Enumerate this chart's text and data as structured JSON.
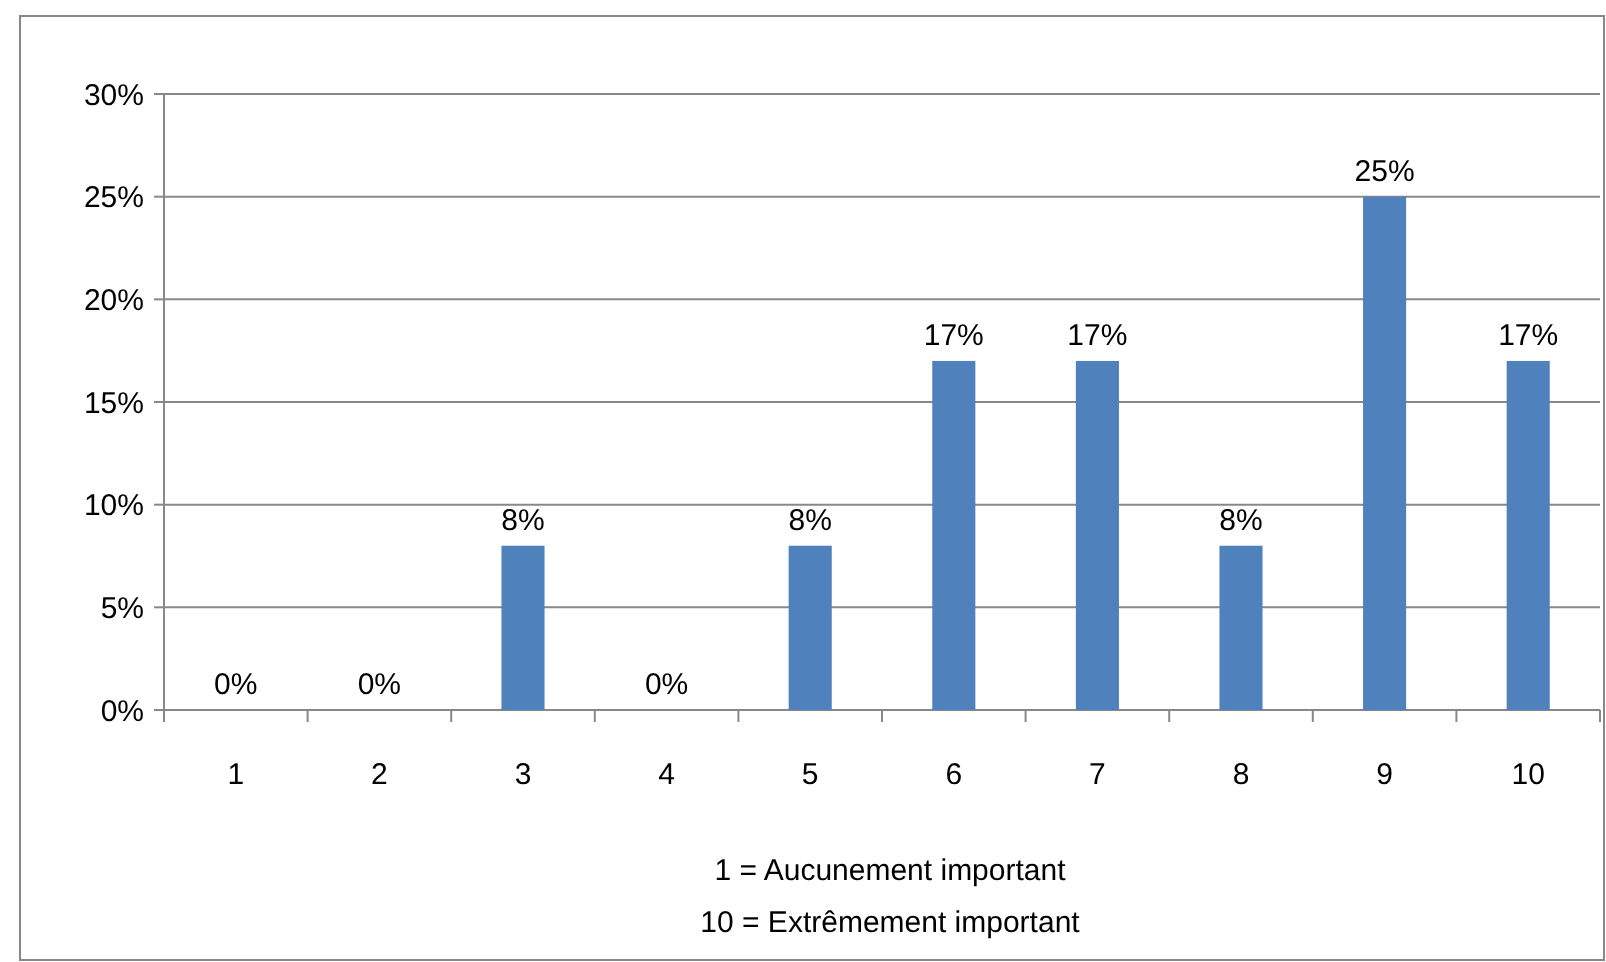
{
  "chart_data": {
    "type": "bar",
    "categories": [
      "1",
      "2",
      "3",
      "4",
      "5",
      "6",
      "7",
      "8",
      "9",
      "10"
    ],
    "values": [
      0,
      0,
      8,
      0,
      8,
      17,
      17,
      8,
      25,
      17
    ],
    "value_labels": [
      "0%",
      "0%",
      "8%",
      "0%",
      "8%",
      "17%",
      "17%",
      "8%",
      "25%",
      "17%"
    ],
    "color": "#4f81bd",
    "ylim": [
      0,
      30
    ],
    "yticks": [
      {
        "value": 0,
        "label": "0%"
      },
      {
        "value": 5,
        "label": "5%"
      },
      {
        "value": 10,
        "label": "10%"
      },
      {
        "value": 15,
        "label": "15%"
      },
      {
        "value": 20,
        "label": "20%"
      },
      {
        "value": 25,
        "label": "25%"
      },
      {
        "value": 30,
        "label": "30%"
      }
    ],
    "grid": "y",
    "annotations": [
      "1 = Aucunement important",
      "10 = Extrêmement important"
    ]
  }
}
